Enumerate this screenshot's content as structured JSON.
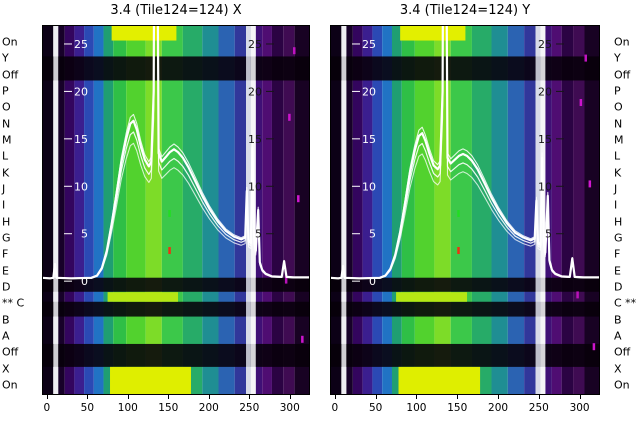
{
  "figure": {
    "left_row_labels": [
      "On",
      "Y",
      "Off",
      "P",
      "O",
      "N",
      "M",
      "L",
      "K",
      "J",
      "I",
      "H",
      "G",
      "F",
      "E",
      "D",
      "** C",
      "B",
      "A",
      "Off",
      "X",
      "On"
    ],
    "right_row_labels": [
      "On",
      "Y",
      "Off",
      "P",
      "O",
      "N",
      "M",
      "L",
      "K",
      "J",
      "I",
      "H",
      "G",
      "F",
      "E",
      "D",
      "C **",
      "B",
      "A",
      "Off",
      "X",
      "On"
    ]
  },
  "chart_data": [
    {
      "type": "heatmap",
      "name": "tile124-x",
      "title": "3.4 (Tile124=124) X",
      "xlim": [
        -6,
        325
      ],
      "ylim": [
        -12,
        27
      ],
      "x_ticks": [
        0,
        50,
        100,
        150,
        200,
        250,
        300
      ],
      "y_ticks_left": [
        25,
        20,
        15,
        10,
        5,
        0
      ],
      "y_ticks_right": [
        25,
        20,
        15,
        10,
        5
      ],
      "grid": false,
      "colormap_bands": [
        [
          -6,
          8,
          "#0c0116"
        ],
        [
          8,
          14,
          "#ededf2"
        ],
        [
          14,
          22,
          "#170129"
        ],
        [
          22,
          34,
          "#33055e"
        ],
        [
          34,
          46,
          "#3b1e8f"
        ],
        [
          46,
          58,
          "#2b49b4"
        ],
        [
          58,
          70,
          "#2173c4"
        ],
        [
          70,
          82,
          "#1f9e72"
        ],
        [
          82,
          98,
          "#2fbf46"
        ],
        [
          98,
          122,
          "#52d22e"
        ],
        [
          122,
          142,
          "#7ddc28"
        ],
        [
          142,
          168,
          "#3cc84a"
        ],
        [
          168,
          192,
          "#27ab68"
        ],
        [
          192,
          212,
          "#1f8e93"
        ],
        [
          212,
          232,
          "#2b63b2"
        ],
        [
          232,
          246,
          "#31379b"
        ],
        [
          246,
          252,
          "#d8dbe8"
        ],
        [
          252,
          258,
          "#f4f4f8"
        ],
        [
          258,
          266,
          "#3f1076"
        ],
        [
          266,
          278,
          "#4f0d72"
        ],
        [
          278,
          292,
          "#2b0343"
        ],
        [
          292,
          306,
          "#3f0b52"
        ],
        [
          306,
          325,
          "#180223"
        ]
      ],
      "dark_row_bands": [
        [
          0.085,
          0.15
        ],
        [
          0.683,
          0.721
        ],
        [
          0.748,
          0.788
        ],
        [
          0.862,
          0.924
        ]
      ],
      "bright_stripes": [
        [
          8,
          14,
          "#ededf2"
        ],
        [
          246,
          252,
          "#d8dbe8"
        ],
        [
          252,
          258,
          "#f4f4f8"
        ]
      ],
      "bright_patches": [
        {
          "x0": 80,
          "x1": 160,
          "y0": 0.0,
          "y1": 0.042,
          "color": "#e3ef00"
        },
        {
          "x0": 78,
          "x1": 178,
          "y0": 0.924,
          "y1": 1.0,
          "color": "#dfee00"
        },
        {
          "x0": 75,
          "x1": 162,
          "y0": 0.722,
          "y1": 0.748,
          "color": "#b5e714"
        }
      ],
      "speckles": [
        {
          "x": 298,
          "y": 0.24,
          "color": "#cc14cc"
        },
        {
          "x": 309,
          "y": 0.46,
          "color": "#d018d0"
        },
        {
          "x": 294,
          "y": 0.68,
          "color": "#b912b9"
        },
        {
          "x": 314,
          "y": 0.84,
          "color": "#cc14cc"
        },
        {
          "x": 304,
          "y": 0.06,
          "color": "#c013c0"
        },
        {
          "x": 150,
          "y": 0.5,
          "color": "#22dd22"
        },
        {
          "x": 150,
          "y": 0.6,
          "color": "#ee3311"
        }
      ],
      "overlay_series": {
        "name": "white-trace-bundle",
        "color": "#ffffff",
        "points": [
          [
            -6,
            0.35
          ],
          [
            4,
            0.3
          ],
          [
            8,
            0.35
          ],
          [
            10,
            1.8
          ],
          [
            12,
            0.35
          ],
          [
            30,
            0.3
          ],
          [
            55,
            0.35
          ],
          [
            62,
            0.6
          ],
          [
            68,
            1.4
          ],
          [
            74,
            3.2
          ],
          [
            80,
            6.0
          ],
          [
            86,
            9.2
          ],
          [
            92,
            12.5
          ],
          [
            98,
            15.0
          ],
          [
            103,
            16.6
          ],
          [
            107,
            16.9
          ],
          [
            111,
            16.0
          ],
          [
            116,
            14.2
          ],
          [
            121,
            12.8
          ],
          [
            126,
            12.1
          ],
          [
            129,
            12.6
          ],
          [
            132,
            20
          ],
          [
            133,
            45
          ],
          [
            136,
            45
          ],
          [
            138,
            13.5
          ],
          [
            142,
            12.6
          ],
          [
            147,
            13.1
          ],
          [
            152,
            13.6
          ],
          [
            157,
            13.9
          ],
          [
            162,
            13.6
          ],
          [
            168,
            13.0
          ],
          [
            175,
            12.0
          ],
          [
            183,
            10.6
          ],
          [
            192,
            9.0
          ],
          [
            201,
            7.6
          ],
          [
            211,
            6.3
          ],
          [
            221,
            5.3
          ],
          [
            231,
            4.7
          ],
          [
            240,
            4.4
          ],
          [
            245,
            4.6
          ],
          [
            247,
            9.5
          ],
          [
            249,
            4.2
          ],
          [
            252,
            4.0
          ],
          [
            254,
            14.0
          ],
          [
            256,
            4.5
          ],
          [
            258,
            3.2
          ],
          [
            261,
            7.5
          ],
          [
            263,
            2.0
          ],
          [
            266,
            1.2
          ],
          [
            270,
            0.8
          ],
          [
            278,
            0.5
          ],
          [
            290,
            0.45
          ],
          [
            293,
            2.1
          ],
          [
            296,
            0.45
          ],
          [
            305,
            0.4
          ],
          [
            325,
            0.4
          ]
        ]
      }
    },
    {
      "type": "heatmap",
      "name": "tile124-y",
      "title": "3.4 (Tile124=124) Y",
      "xlim": [
        -6,
        325
      ],
      "ylim": [
        -12,
        27
      ],
      "x_ticks": [
        0,
        50,
        100,
        150,
        200,
        250,
        300
      ],
      "y_ticks_left": [
        25,
        20,
        15,
        10,
        5,
        0
      ],
      "y_ticks_right": [
        25,
        20,
        15,
        10,
        5
      ],
      "grid": false,
      "colormap_bands": [
        [
          -6,
          8,
          "#0c0116"
        ],
        [
          8,
          14,
          "#ededf2"
        ],
        [
          14,
          22,
          "#170129"
        ],
        [
          22,
          34,
          "#33055e"
        ],
        [
          34,
          46,
          "#3b1e8f"
        ],
        [
          46,
          58,
          "#2b49b4"
        ],
        [
          58,
          70,
          "#2173c4"
        ],
        [
          70,
          82,
          "#1f9e72"
        ],
        [
          82,
          98,
          "#2fbf46"
        ],
        [
          98,
          122,
          "#52d22e"
        ],
        [
          122,
          142,
          "#7ddc28"
        ],
        [
          142,
          168,
          "#3cc84a"
        ],
        [
          168,
          192,
          "#27ab68"
        ],
        [
          192,
          212,
          "#1f8e93"
        ],
        [
          212,
          232,
          "#2b63b2"
        ],
        [
          232,
          246,
          "#31379b"
        ],
        [
          246,
          252,
          "#d8dbe8"
        ],
        [
          252,
          258,
          "#f4f4f8"
        ],
        [
          258,
          266,
          "#3f1076"
        ],
        [
          266,
          278,
          "#4f0d72"
        ],
        [
          278,
          292,
          "#2b0343"
        ],
        [
          292,
          306,
          "#3f0b52"
        ],
        [
          306,
          325,
          "#180223"
        ]
      ],
      "dark_row_bands": [
        [
          0.085,
          0.15
        ],
        [
          0.683,
          0.721
        ],
        [
          0.748,
          0.788
        ],
        [
          0.862,
          0.924
        ]
      ],
      "bright_stripes": [
        [
          8,
          14,
          "#ededf2"
        ],
        [
          246,
          252,
          "#d8dbe8"
        ],
        [
          252,
          258,
          "#f4f4f8"
        ]
      ],
      "bright_patches": [
        {
          "x0": 80,
          "x1": 160,
          "y0": 0.0,
          "y1": 0.042,
          "color": "#e3ef00"
        },
        {
          "x0": 78,
          "x1": 178,
          "y0": 0.924,
          "y1": 1.0,
          "color": "#dfee00"
        },
        {
          "x0": 75,
          "x1": 162,
          "y0": 0.722,
          "y1": 0.748,
          "color": "#b5e714"
        }
      ],
      "speckles": [
        {
          "x": 300,
          "y": 0.2,
          "color": "#cc14cc"
        },
        {
          "x": 311,
          "y": 0.42,
          "color": "#d018d0"
        },
        {
          "x": 296,
          "y": 0.72,
          "color": "#b912b9"
        },
        {
          "x": 316,
          "y": 0.86,
          "color": "#cc14cc"
        },
        {
          "x": 306,
          "y": 0.08,
          "color": "#c013c0"
        },
        {
          "x": 150,
          "y": 0.5,
          "color": "#22dd22"
        },
        {
          "x": 150,
          "y": 0.6,
          "color": "#ee3311"
        }
      ],
      "overlay_series": {
        "name": "white-trace-bundle",
        "color": "#ffffff",
        "points": [
          [
            -6,
            0.35
          ],
          [
            4,
            0.3
          ],
          [
            8,
            0.35
          ],
          [
            10,
            1.6
          ],
          [
            12,
            0.35
          ],
          [
            30,
            0.3
          ],
          [
            55,
            0.35
          ],
          [
            62,
            0.6
          ],
          [
            68,
            1.3
          ],
          [
            74,
            2.8
          ],
          [
            80,
            5.2
          ],
          [
            86,
            8.2
          ],
          [
            92,
            11.4
          ],
          [
            98,
            13.8
          ],
          [
            103,
            15.3
          ],
          [
            107,
            15.6
          ],
          [
            111,
            14.8
          ],
          [
            116,
            13.4
          ],
          [
            121,
            12.2
          ],
          [
            126,
            11.8
          ],
          [
            129,
            12.2
          ],
          [
            132,
            20
          ],
          [
            133,
            45
          ],
          [
            136,
            45
          ],
          [
            138,
            13.0
          ],
          [
            142,
            12.4
          ],
          [
            147,
            12.8
          ],
          [
            152,
            13.2
          ],
          [
            157,
            13.4
          ],
          [
            162,
            13.2
          ],
          [
            168,
            12.7
          ],
          [
            175,
            11.8
          ],
          [
            183,
            10.4
          ],
          [
            192,
            8.8
          ],
          [
            201,
            7.4
          ],
          [
            211,
            6.1
          ],
          [
            221,
            5.1
          ],
          [
            231,
            4.6
          ],
          [
            240,
            4.3
          ],
          [
            245,
            4.5
          ],
          [
            247,
            8.5
          ],
          [
            249,
            4.0
          ],
          [
            252,
            3.8
          ],
          [
            254,
            13.0
          ],
          [
            256,
            4.2
          ],
          [
            258,
            3.0
          ],
          [
            261,
            9.0
          ],
          [
            263,
            2.2
          ],
          [
            266,
            1.2
          ],
          [
            270,
            0.8
          ],
          [
            278,
            0.5
          ],
          [
            288,
            0.45
          ],
          [
            291,
            2.4
          ],
          [
            294,
            0.45
          ],
          [
            305,
            0.4
          ],
          [
            325,
            0.4
          ]
        ]
      }
    }
  ]
}
